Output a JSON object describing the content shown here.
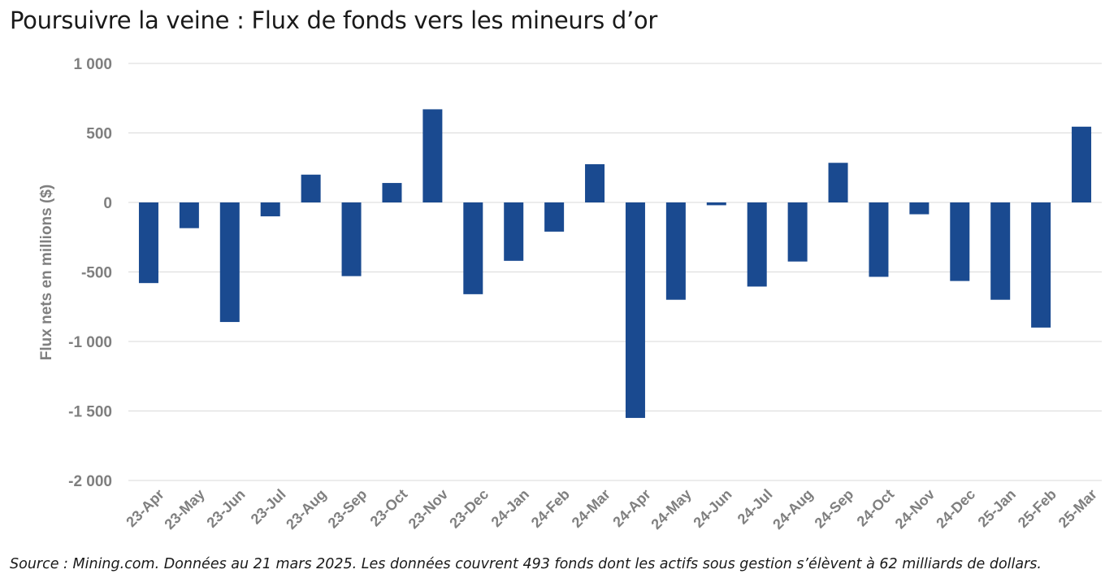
{
  "title": "Poursuivre la veine : Flux de fonds vers les mineurs d’or",
  "source": "Source : Mining.com. Données au 21 mars 2025. Les données couvrent 493 fonds dont les actifs sous gestion s’élèvent à 62 milliards de dollars.",
  "chart_data": {
    "type": "bar",
    "title": "Poursuivre la veine : Flux de fonds vers les mineurs d’or",
    "xlabel": "",
    "ylabel": "Flux nets en millions ($)",
    "ylim": [
      -2000,
      1000
    ],
    "yticks": [
      1000,
      500,
      0,
      -500,
      -1000,
      -1500,
      -2000
    ],
    "ytick_labels": [
      "1 000",
      "500",
      "0",
      "-500",
      "-1 000",
      "-1 500",
      "-2 000"
    ],
    "grid": "horizontal",
    "legend": "none",
    "bar_color": "#1a4a90",
    "categories": [
      "23-Apr",
      "23-May",
      "23-Jun",
      "23-Jul",
      "23-Aug",
      "23-Sep",
      "23-Oct",
      "23-Nov",
      "23-Dec",
      "24-Jan",
      "24-Feb",
      "24-Mar",
      "24-Apr",
      "24-May",
      "24-Jun",
      "24-Jul",
      "24-Aug",
      "24-Sep",
      "24-Oct",
      "24-Nov",
      "24-Dec",
      "25-Jan",
      "25-Feb",
      "25-Mar"
    ],
    "values": [
      -580,
      -185,
      -860,
      -100,
      200,
      -530,
      140,
      670,
      -660,
      -420,
      -210,
      275,
      -1550,
      -700,
      -20,
      -605,
      -425,
      285,
      -535,
      -85,
      -565,
      -700,
      -900,
      545
    ]
  }
}
